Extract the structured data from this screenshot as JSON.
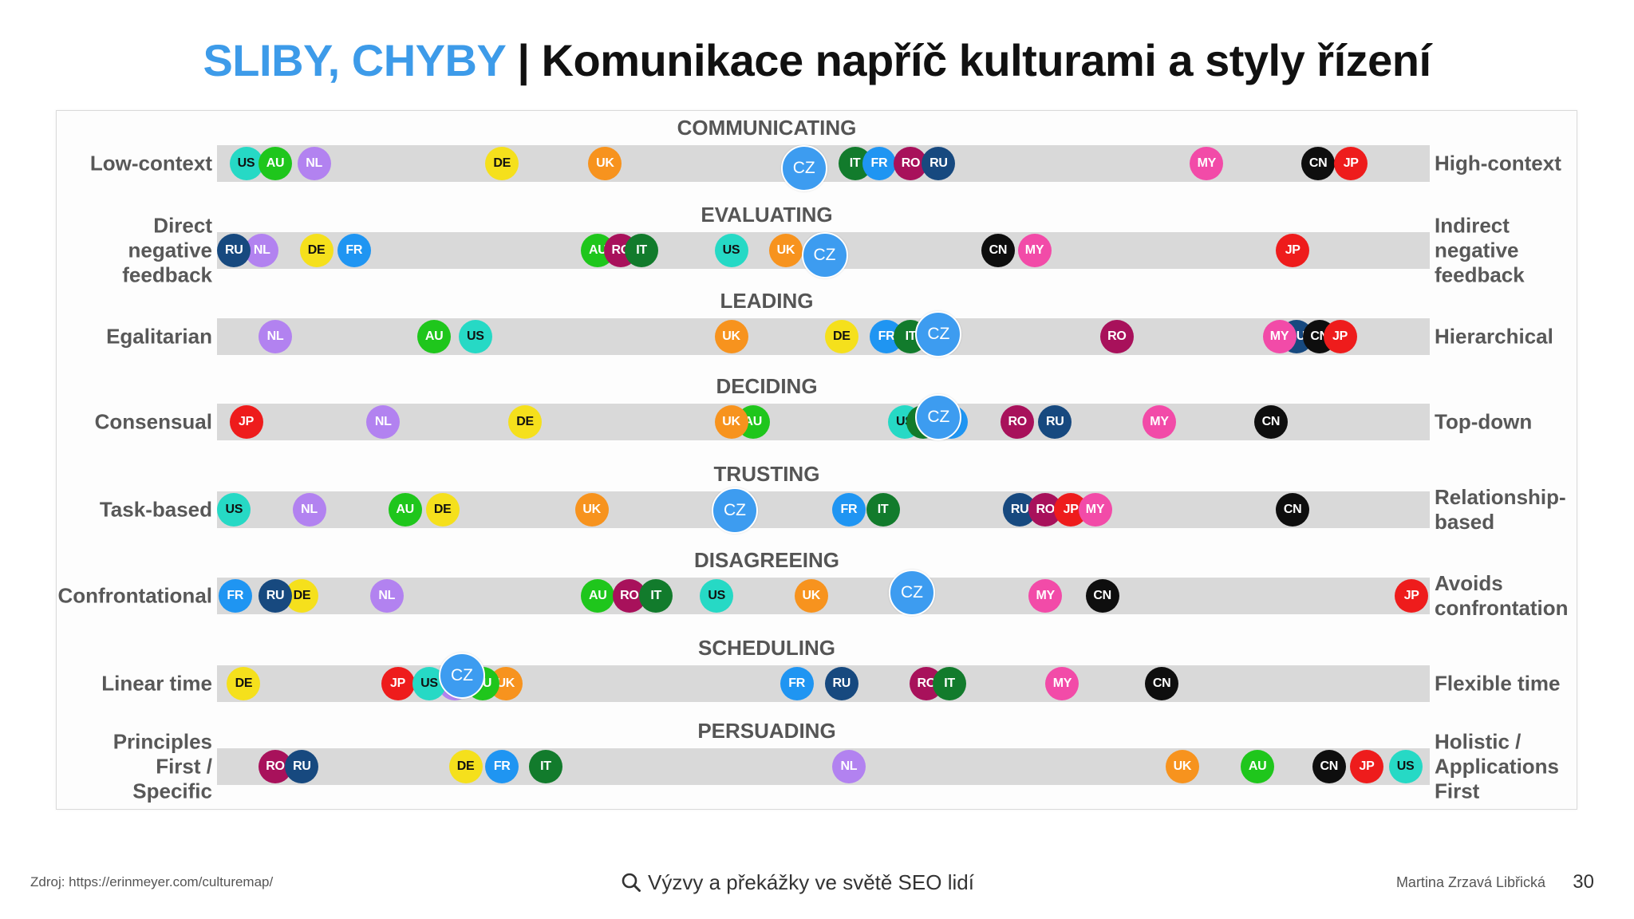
{
  "slide": {
    "title_highlight": "SLIBY, CHYBY",
    "title_separator": "|",
    "title_rest": "Komunikace napříč kulturami a styly řízení",
    "title_highlight_color": "#3d9be9"
  },
  "chart_data": {
    "type": "scatter",
    "xlim": [
      0,
      100
    ],
    "rows": [
      {
        "title": "COMMUNICATING",
        "left_label": [
          "Low-context"
        ],
        "right_label": [
          "High-context"
        ],
        "points": [
          {
            "code": "US",
            "x": 2.4
          },
          {
            "code": "AU",
            "x": 4.8
          },
          {
            "code": "NL",
            "x": 8.0
          },
          {
            "code": "DE",
            "x": 23.5
          },
          {
            "code": "UK",
            "x": 32.0
          },
          {
            "code": "IT",
            "x": 52.6
          },
          {
            "code": "FR",
            "x": 54.6
          },
          {
            "code": "RO",
            "x": 57.2
          },
          {
            "code": "RU",
            "x": 59.5
          },
          {
            "code": "MY",
            "x": 81.6
          },
          {
            "code": "CN",
            "x": 90.8
          },
          {
            "code": "JP",
            "x": 93.5
          },
          {
            "code": "CZ",
            "x": 48.4,
            "highlight": true
          }
        ]
      },
      {
        "title": "EVALUATING",
        "left_label": [
          "Direct",
          "negative",
          "feedback"
        ],
        "right_label": [
          "Indirect",
          "negative",
          "feedback"
        ],
        "points": [
          {
            "code": "NL",
            "x": 3.7
          },
          {
            "code": "RU",
            "x": 1.4
          },
          {
            "code": "DE",
            "x": 8.2
          },
          {
            "code": "FR",
            "x": 11.3
          },
          {
            "code": "AU",
            "x": 31.4
          },
          {
            "code": "RO",
            "x": 33.3
          },
          {
            "code": "IT",
            "x": 35.0
          },
          {
            "code": "US",
            "x": 42.4
          },
          {
            "code": "UK",
            "x": 46.9
          },
          {
            "code": "CN",
            "x": 64.4
          },
          {
            "code": "MY",
            "x": 67.4
          },
          {
            "code": "JP",
            "x": 88.7
          },
          {
            "code": "CZ",
            "x": 50.1,
            "highlight": true
          }
        ]
      },
      {
        "title": "LEADING",
        "left_label": [
          "Egalitarian"
        ],
        "right_label": [
          "Hierarchical"
        ],
        "points": [
          {
            "code": "NL",
            "x": 4.8
          },
          {
            "code": "AU",
            "x": 17.9
          },
          {
            "code": "US",
            "x": 21.3
          },
          {
            "code": "UK",
            "x": 42.4
          },
          {
            "code": "DE",
            "x": 51.5
          },
          {
            "code": "FR",
            "x": 55.2
          },
          {
            "code": "IT",
            "x": 57.2
          },
          {
            "code": "RO",
            "x": 74.2
          },
          {
            "code": "RU",
            "x": 89.0
          },
          {
            "code": "CN",
            "x": 90.9
          },
          {
            "code": "MY",
            "x": 87.6
          },
          {
            "code": "JP",
            "x": 92.6
          },
          {
            "code": "CZ",
            "x": 59.5,
            "highlight": true
          }
        ]
      },
      {
        "title": "DECIDING",
        "left_label": [
          "Consensual"
        ],
        "right_label": [
          "Top-down"
        ],
        "points": [
          {
            "code": "JP",
            "x": 2.4
          },
          {
            "code": "NL",
            "x": 13.7
          },
          {
            "code": "DE",
            "x": 25.4
          },
          {
            "code": "AU",
            "x": 44.2
          },
          {
            "code": "UK",
            "x": 42.4
          },
          {
            "code": "US",
            "x": 56.7
          },
          {
            "code": "IT",
            "x": 58.2
          },
          {
            "code": "FR",
            "x": 60.5
          },
          {
            "code": "RO",
            "x": 66.0
          },
          {
            "code": "RU",
            "x": 69.1
          },
          {
            "code": "MY",
            "x": 77.7
          },
          {
            "code": "CN",
            "x": 86.9
          },
          {
            "code": "CZ",
            "x": 59.5,
            "highlight": true
          }
        ]
      },
      {
        "title": "TRUSTING",
        "left_label": [
          "Task-based"
        ],
        "right_label": [
          "Relationship-",
          "based"
        ],
        "points": [
          {
            "code": "US",
            "x": 1.4
          },
          {
            "code": "NL",
            "x": 7.6
          },
          {
            "code": "AU",
            "x": 15.5
          },
          {
            "code": "DE",
            "x": 18.6
          },
          {
            "code": "UK",
            "x": 30.9
          },
          {
            "code": "FR",
            "x": 52.1
          },
          {
            "code": "IT",
            "x": 54.9
          },
          {
            "code": "RU",
            "x": 66.2
          },
          {
            "code": "RO",
            "x": 68.3
          },
          {
            "code": "JP",
            "x": 70.4
          },
          {
            "code": "MY",
            "x": 72.4
          },
          {
            "code": "CN",
            "x": 88.7
          },
          {
            "code": "CZ",
            "x": 42.7,
            "highlight": true
          }
        ]
      },
      {
        "title": "DISAGREEING",
        "left_label": [
          "Confrontational"
        ],
        "right_label": [
          "Avoids",
          "confrontation"
        ],
        "points": [
          {
            "code": "FR",
            "x": 1.5
          },
          {
            "code": "DE",
            "x": 7.0
          },
          {
            "code": "RU",
            "x": 4.8
          },
          {
            "code": "NL",
            "x": 14.0
          },
          {
            "code": "AU",
            "x": 31.4
          },
          {
            "code": "RO",
            "x": 34.0
          },
          {
            "code": "IT",
            "x": 36.2
          },
          {
            "code": "US",
            "x": 41.2
          },
          {
            "code": "UK",
            "x": 49.0
          },
          {
            "code": "MY",
            "x": 68.3
          },
          {
            "code": "CN",
            "x": 73.0
          },
          {
            "code": "JP",
            "x": 98.5
          },
          {
            "code": "CZ",
            "x": 57.3,
            "highlight": true
          }
        ]
      },
      {
        "title": "SCHEDULING",
        "left_label": [
          "Linear time"
        ],
        "right_label": [
          "Flexible time"
        ],
        "points": [
          {
            "code": "DE",
            "x": 2.2
          },
          {
            "code": "JP",
            "x": 14.9
          },
          {
            "code": "NL",
            "x": 19.6
          },
          {
            "code": "UK",
            "x": 23.8
          },
          {
            "code": "AU",
            "x": 21.9
          },
          {
            "code": "US",
            "x": 17.5
          },
          {
            "code": "FR",
            "x": 47.8
          },
          {
            "code": "RU",
            "x": 51.5
          },
          {
            "code": "RO",
            "x": 58.5
          },
          {
            "code": "IT",
            "x": 60.4
          },
          {
            "code": "MY",
            "x": 69.7
          },
          {
            "code": "CN",
            "x": 77.9
          },
          {
            "code": "CZ",
            "x": 20.2,
            "highlight": true
          }
        ]
      },
      {
        "title": "PERSUADING",
        "left_label": [
          "Principles",
          "First /",
          "Specific"
        ],
        "right_label": [
          "Holistic /",
          "Applications",
          "First"
        ],
        "points": [
          {
            "code": "RO",
            "x": 4.8
          },
          {
            "code": "RU",
            "x": 7.0
          },
          {
            "code": "DE",
            "x": 20.5
          },
          {
            "code": "FR",
            "x": 23.5
          },
          {
            "code": "IT",
            "x": 27.1
          },
          {
            "code": "NL",
            "x": 52.1
          },
          {
            "code": "UK",
            "x": 79.6
          },
          {
            "code": "AU",
            "x": 85.8
          },
          {
            "code": "CN",
            "x": 91.7
          },
          {
            "code": "JP",
            "x": 94.8
          },
          {
            "code": "US",
            "x": 98.0
          }
        ]
      }
    ]
  },
  "country_colors": {
    "US": {
      "fill": "#26d9c5",
      "text": "#111111"
    },
    "AU": {
      "fill": "#1fc61c",
      "text": "#ffffff"
    },
    "NL": {
      "fill": "#b282f0",
      "text": "#ffffff"
    },
    "DE": {
      "fill": "#f5e01c",
      "text": "#111111"
    },
    "UK": {
      "fill": "#f7931e",
      "text": "#ffffff"
    },
    "IT": {
      "fill": "#127b2c",
      "text": "#ffffff"
    },
    "FR": {
      "fill": "#1f95f2",
      "text": "#ffffff"
    },
    "RO": {
      "fill": "#a8115b",
      "text": "#ffffff"
    },
    "RU": {
      "fill": "#17497f",
      "text": "#ffffff"
    },
    "MY": {
      "fill": "#f24ba8",
      "text": "#ffffff"
    },
    "CN": {
      "fill": "#0e0e0e",
      "text": "#ffffff"
    },
    "JP": {
      "fill": "#ee1c1c",
      "text": "#ffffff"
    },
    "CZ": {
      "fill": "#3d9cf0",
      "text": "#ffffff"
    }
  },
  "footer": {
    "source": "Zdroj: https://erinmeyer.com/culturemap/",
    "icon": "search-icon",
    "tagline": "Výzvy a překážky ve světě SEO lidí",
    "author": "Martina Zrzavá Libřická",
    "page_number": "30"
  }
}
